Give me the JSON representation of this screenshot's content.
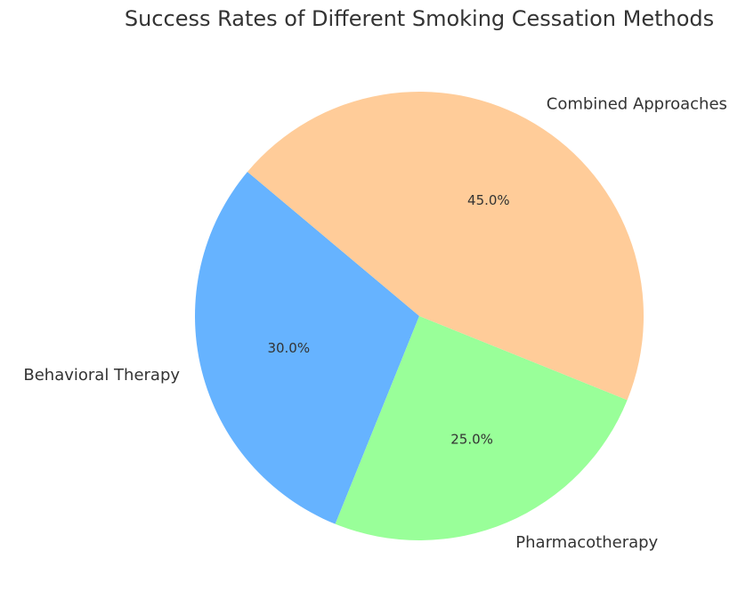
{
  "chart_data": {
    "type": "pie",
    "title": "Success Rates of Different Smoking Cessation Methods",
    "categories": [
      "Behavioral Therapy",
      "Pharmacotherapy",
      "Combined Approaches"
    ],
    "values": [
      30,
      25,
      45
    ],
    "value_labels": [
      "30.0%",
      "25.0%",
      "45.0%"
    ],
    "colors": [
      "#66b3ff",
      "#99ff99",
      "#ffcc99"
    ]
  }
}
